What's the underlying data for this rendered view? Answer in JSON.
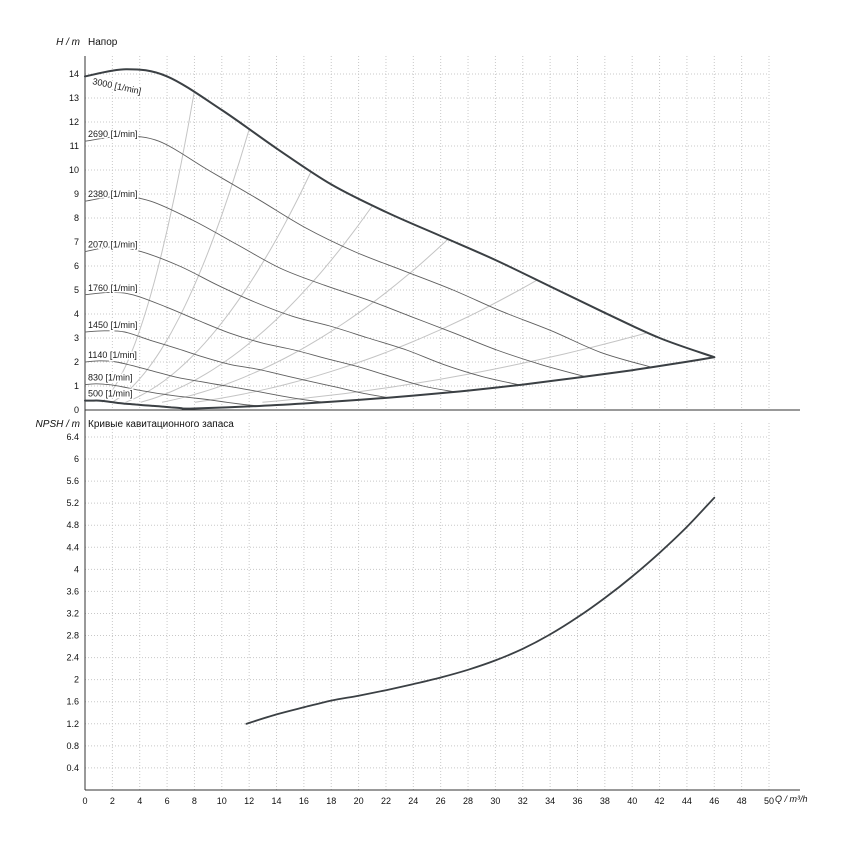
{
  "page": {
    "background": "#ffffff"
  },
  "colors": {
    "grid": "#c8c8c8",
    "axis": "#333333",
    "curve_thin": "#5f5f5f",
    "curve_thick": "#3b4044",
    "affinity_line": "#c4c4c4",
    "label_text": "#1a1a1a"
  },
  "chart_data": [
    {
      "type": "line",
      "panel": "head",
      "title": "Напор",
      "ylabel": "H / m",
      "xlabel": "Q / m³/h",
      "xlim": [
        0,
        50
      ],
      "ylim": [
        0,
        14.5
      ],
      "xtick_step": 2,
      "ytick_step": 1,
      "grid": true,
      "legend_position": "on-curve-labels",
      "series": [
        {
          "name": "3000 [1/min]",
          "rpm": 3000,
          "role": "max-speed-envelope",
          "points": [
            [
              0,
              13.9
            ],
            [
              3,
              14.2
            ],
            [
              6,
              13.9
            ],
            [
              10,
              12.5
            ],
            [
              14,
              10.9
            ],
            [
              18,
              9.4
            ],
            [
              22,
              8.25
            ],
            [
              26,
              7.25
            ],
            [
              30,
              6.25
            ],
            [
              34,
              5.15
            ],
            [
              38,
              4.05
            ],
            [
              42,
              3.0
            ],
            [
              46,
              2.2
            ]
          ]
        },
        {
          "name": "2690 [1/min]",
          "rpm": 2690,
          "points": [
            [
              0,
              11.2
            ],
            [
              2.7,
              11.4
            ],
            [
              5.4,
              11.2
            ],
            [
              9,
              10.0
            ],
            [
              12.6,
              8.8
            ],
            [
              16.1,
              7.6
            ],
            [
              19.7,
              6.6
            ],
            [
              23.3,
              5.8
            ],
            [
              26.9,
              5.0
            ],
            [
              30.5,
              4.1
            ],
            [
              34.1,
              3.3
            ],
            [
              37.7,
              2.4
            ],
            [
              41.3,
              1.8
            ]
          ]
        },
        {
          "name": "2380 [1/min]",
          "rpm": 2380,
          "points": [
            [
              0,
              8.7
            ],
            [
              2.4,
              8.9
            ],
            [
              4.8,
              8.7
            ],
            [
              7.9,
              7.9
            ],
            [
              11.1,
              6.9
            ],
            [
              14.3,
              5.9
            ],
            [
              17.5,
              5.2
            ],
            [
              20.6,
              4.6
            ],
            [
              23.8,
              3.9
            ],
            [
              27,
              3.2
            ],
            [
              30.1,
              2.5
            ],
            [
              33.3,
              1.9
            ],
            [
              36.5,
              1.4
            ]
          ]
        },
        {
          "name": "2070 [1/min]",
          "rpm": 2070,
          "points": [
            [
              0,
              6.6
            ],
            [
              2.1,
              6.8
            ],
            [
              4.1,
              6.6
            ],
            [
              6.9,
              6.0
            ],
            [
              9.7,
              5.2
            ],
            [
              12.4,
              4.5
            ],
            [
              15.2,
              3.9
            ],
            [
              17.9,
              3.5
            ],
            [
              20.7,
              3.0
            ],
            [
              23.5,
              2.5
            ],
            [
              26.2,
              1.9
            ],
            [
              29,
              1.4
            ],
            [
              31.7,
              1.05
            ]
          ]
        },
        {
          "name": "1760 [1/min]",
          "rpm": 1760,
          "points": [
            [
              0,
              4.8
            ],
            [
              1.8,
              4.9
            ],
            [
              3.5,
              4.8
            ],
            [
              5.9,
              4.3
            ],
            [
              8.2,
              3.75
            ],
            [
              10.6,
              3.2
            ],
            [
              12.9,
              2.8
            ],
            [
              15.3,
              2.5
            ],
            [
              17.6,
              2.15
            ],
            [
              20,
              1.8
            ],
            [
              22.3,
              1.4
            ],
            [
              24.7,
              1.0
            ],
            [
              27,
              0.76
            ]
          ]
        },
        {
          "name": "1450 [1/min]",
          "rpm": 1450,
          "points": [
            [
              0,
              3.25
            ],
            [
              1.4,
              3.3
            ],
            [
              2.9,
              3.25
            ],
            [
              4.8,
              2.9
            ],
            [
              6.8,
              2.55
            ],
            [
              8.7,
              2.2
            ],
            [
              10.6,
              1.9
            ],
            [
              12.6,
              1.7
            ],
            [
              14.5,
              1.45
            ],
            [
              16.4,
              1.2
            ],
            [
              18.4,
              0.95
            ],
            [
              20.3,
              0.7
            ],
            [
              22.2,
              0.51
            ]
          ]
        },
        {
          "name": "1140 [1/min]",
          "rpm": 1140,
          "points": [
            [
              0,
              2.0
            ],
            [
              1.1,
              2.05
            ],
            [
              2.3,
              2.0
            ],
            [
              3.8,
              1.8
            ],
            [
              5.3,
              1.57
            ],
            [
              6.8,
              1.35
            ],
            [
              8.4,
              1.19
            ],
            [
              9.9,
              1.04
            ],
            [
              11.4,
              0.9
            ],
            [
              12.9,
              0.74
            ],
            [
              14.4,
              0.58
            ],
            [
              16,
              0.43
            ],
            [
              17.5,
              0.32
            ]
          ]
        },
        {
          "name": "830 [1/min]",
          "rpm": 830,
          "points": [
            [
              0,
              1.06
            ],
            [
              0.8,
              1.09
            ],
            [
              1.7,
              1.06
            ],
            [
              2.8,
              0.96
            ],
            [
              3.9,
              0.83
            ],
            [
              5,
              0.72
            ],
            [
              6.1,
              0.63
            ],
            [
              7.2,
              0.55
            ],
            [
              8.3,
              0.48
            ],
            [
              9.4,
              0.4
            ],
            [
              10.5,
              0.31
            ],
            [
              11.6,
              0.23
            ],
            [
              12.7,
              0.17
            ]
          ]
        },
        {
          "name": "500 [1/min]",
          "rpm": 500,
          "role": "min-speed-envelope",
          "points": [
            [
              0,
              0.39
            ],
            [
              0.5,
              0.39
            ],
            [
              1,
              0.39
            ],
            [
              1.7,
              0.35
            ],
            [
              2.3,
              0.3
            ],
            [
              3,
              0.26
            ],
            [
              3.7,
              0.23
            ],
            [
              4.3,
              0.2
            ],
            [
              5,
              0.17
            ],
            [
              5.7,
              0.14
            ],
            [
              6.3,
              0.11
            ],
            [
              7,
              0.08
            ],
            [
              7.7,
              0.06
            ]
          ]
        }
      ],
      "operating_limit": [
        [
          7.7,
          0.06
        ],
        [
          12,
          0.15
        ],
        [
          16,
          0.27
        ],
        [
          20,
          0.42
        ],
        [
          24,
          0.6
        ],
        [
          28,
          0.81
        ],
        [
          32,
          1.06
        ],
        [
          36,
          1.35
        ],
        [
          40,
          1.66
        ],
        [
          44,
          2.01
        ],
        [
          46,
          2.2
        ]
      ],
      "affinity_lines": [
        {
          "q_end": 8,
          "h_end": 13.3
        },
        {
          "q_end": 12,
          "h_end": 11.7
        },
        {
          "q_end": 16.5,
          "h_end": 9.9
        },
        {
          "q_end": 21,
          "h_end": 8.5
        },
        {
          "q_end": 26.5,
          "h_end": 7.1
        },
        {
          "q_end": 33,
          "h_end": 5.4
        },
        {
          "q_end": 41,
          "h_end": 3.2
        }
      ]
    },
    {
      "type": "line",
      "panel": "npsh",
      "title": "Кривые кавитационного запаса",
      "ylabel": "NPSH / m",
      "xlabel": "Q / m³/h",
      "xlim": [
        0,
        50
      ],
      "ylim": [
        0,
        6.4
      ],
      "xtick_step": 2,
      "ytick_step": 0.4,
      "grid": true,
      "series": [
        {
          "name": "NPSH",
          "points": [
            [
              11.8,
              1.2
            ],
            [
              14,
              1.37
            ],
            [
              16,
              1.5
            ],
            [
              18,
              1.62
            ],
            [
              20,
              1.71
            ],
            [
              22,
              1.81
            ],
            [
              24,
              1.92
            ],
            [
              26,
              2.04
            ],
            [
              28,
              2.18
            ],
            [
              30,
              2.35
            ],
            [
              32,
              2.56
            ],
            [
              34,
              2.82
            ],
            [
              36,
              3.13
            ],
            [
              38,
              3.48
            ],
            [
              40,
              3.87
            ],
            [
              42,
              4.3
            ],
            [
              44,
              4.77
            ],
            [
              46,
              5.3
            ]
          ]
        }
      ]
    }
  ]
}
